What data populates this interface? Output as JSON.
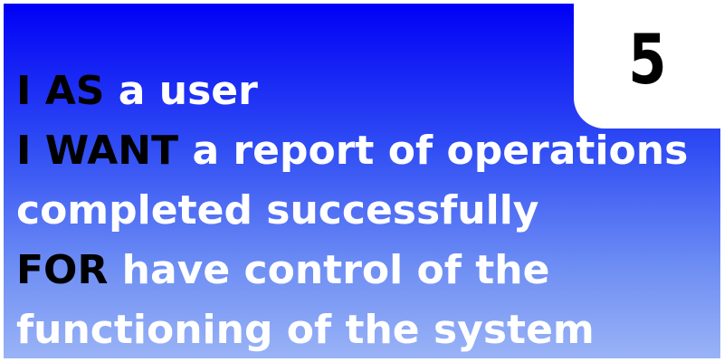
{
  "story_number": "5",
  "story": {
    "as_keyword": "I AS",
    "as_text": " a user",
    "want_keyword": "I WANT",
    "want_text_line1": " a report of operations",
    "want_text_line2": "completed successfully",
    "for_keyword": "FOR",
    "for_text_line1": " have control of the",
    "for_text_line2": "functioning of the system"
  },
  "colors": {
    "gradient_top": "#0000f5",
    "gradient_bottom": "#9ab3f6",
    "keyword": "#000000",
    "text": "#ffffff"
  }
}
